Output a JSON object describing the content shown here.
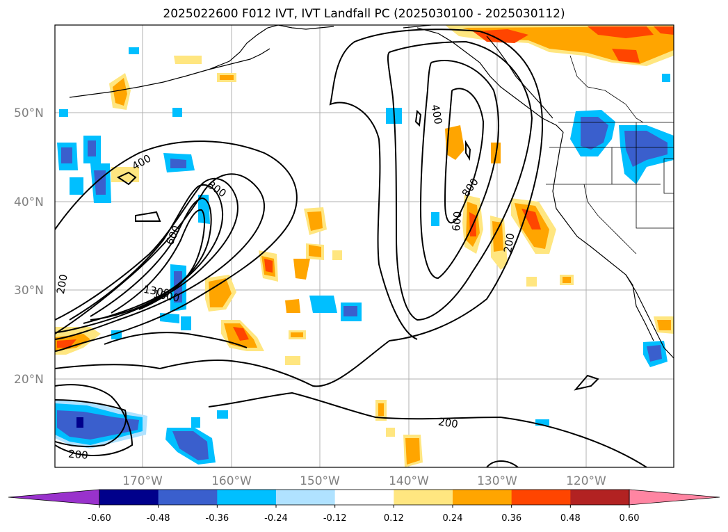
{
  "title": "2025022600 F012 IVT, IVT Landfall PC (2025030100 - 2025030112)",
  "lat_labels": [
    "50°N",
    "40°N",
    "30°N",
    "20°N"
  ],
  "lon_labels": [
    "170°W",
    "160°W",
    "150°W",
    "140°W",
    "130°W",
    "120°W"
  ],
  "contour_labels": [
    "400",
    "800",
    "600",
    "1000",
    "1300",
    "200",
    "400",
    "800",
    "600",
    "200",
    "200",
    "200"
  ],
  "colorbar": {
    "ticks": [
      "-0.60",
      "-0.48",
      "-0.36",
      "-0.24",
      "-0.12",
      "0.12",
      "0.24",
      "0.36",
      "0.48",
      "0.60"
    ],
    "colors": [
      "#9932cc",
      "#00008b",
      "#3a5fcd",
      "#00bfff",
      "#b0e2ff",
      "#ffffff",
      "#ffe680",
      "#ffa500",
      "#ff4500",
      "#b22222",
      "#ff85a2"
    ]
  }
}
